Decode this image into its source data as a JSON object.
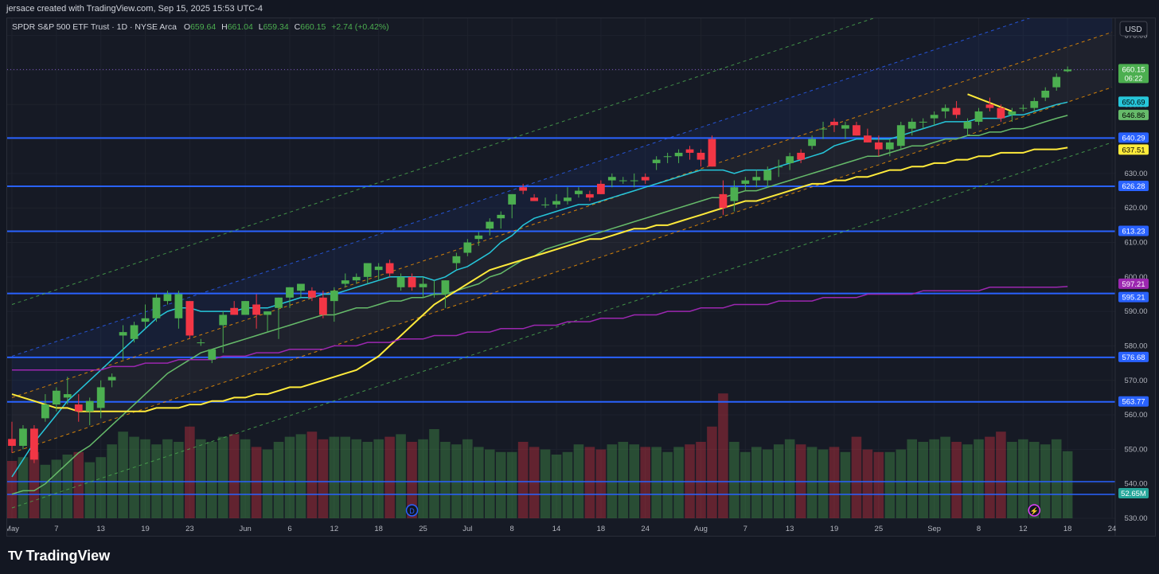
{
  "header": {
    "credit": "jersace created with TradingView.com, Sep 15, 2025 15:53 UTC-4"
  },
  "legend": {
    "symbol": "SPDR S&P 500 ETF Trust · 1D · NYSE Arca",
    "o_label": "O",
    "o": "659.64",
    "h_label": "H",
    "h": "661.04",
    "l_label": "L",
    "l": "659.34",
    "c_label": "C",
    "c": "660.15",
    "change": "+2.74 (+0.42%)"
  },
  "currency": "USD",
  "brand": {
    "name": "TradingView",
    "logo_text": "TV"
  },
  "colors": {
    "up": "#26a69a",
    "up_candle": "#4caf50",
    "down": "#f23645",
    "ema_fast": "#26c6da",
    "ema_mid": "#66bb6a",
    "sma_slow": "#ffeb3b",
    "sma_200": "#9c27b0",
    "hline": "#2962ff",
    "channel_orange": "#ff9800",
    "channel_blue": "#2962ff",
    "channel_green": "#4caf50"
  },
  "chart_data": {
    "type": "candlestick",
    "title": "SPDR S&P 500 ETF Trust · 1D · NYSE Arca",
    "ylim": [
      530,
      675
    ],
    "price_ticks": [
      670,
      660,
      650,
      640,
      630,
      620,
      610,
      600,
      590,
      580,
      570,
      560,
      550,
      540,
      530
    ],
    "time_ticks": [
      {
        "label": "May",
        "index": 0
      },
      {
        "label": "7",
        "index": 4
      },
      {
        "label": "13",
        "index": 8
      },
      {
        "label": "19",
        "index": 12
      },
      {
        "label": "23",
        "index": 16
      },
      {
        "label": "Jun",
        "index": 21
      },
      {
        "label": "6",
        "index": 25
      },
      {
        "label": "12",
        "index": 29
      },
      {
        "label": "18",
        "index": 33
      },
      {
        "label": "25",
        "index": 37
      },
      {
        "label": "Jul",
        "index": 41
      },
      {
        "label": "8",
        "index": 45
      },
      {
        "label": "14",
        "index": 49
      },
      {
        "label": "18",
        "index": 53
      },
      {
        "label": "24",
        "index": 57
      },
      {
        "label": "Aug",
        "index": 62
      },
      {
        "label": "7",
        "index": 66
      },
      {
        "label": "13",
        "index": 70
      },
      {
        "label": "19",
        "index": 74
      },
      {
        "label": "25",
        "index": 78
      },
      {
        "label": "Sep",
        "index": 83
      },
      {
        "label": "8",
        "index": 87
      },
      {
        "label": "12",
        "index": 91
      },
      {
        "label": "18",
        "index": 95
      },
      {
        "label": "24",
        "index": 99
      }
    ],
    "candles": [
      [
        553,
        558,
        549,
        551
      ],
      [
        551,
        557,
        550,
        556
      ],
      [
        556,
        557,
        546,
        547
      ],
      [
        559,
        566,
        558,
        563
      ],
      [
        563,
        568,
        561,
        567
      ],
      [
        565,
        571,
        563,
        566
      ],
      [
        563,
        566,
        558,
        561
      ],
      [
        561,
        565,
        557,
        564
      ],
      [
        562,
        570,
        559,
        568
      ],
      [
        570,
        572,
        568,
        571
      ],
      [
        583,
        586,
        576,
        584
      ],
      [
        582,
        587,
        581,
        586
      ],
      [
        587,
        592,
        585,
        588
      ],
      [
        588,
        595,
        587,
        594
      ],
      [
        593,
        596,
        592,
        595
      ],
      [
        588,
        596,
        585,
        595
      ],
      [
        593,
        593,
        582,
        583
      ],
      [
        581,
        582,
        580,
        581
      ],
      [
        576,
        579,
        575,
        579
      ],
      [
        586,
        590,
        578,
        589
      ],
      [
        591,
        593,
        589,
        589
      ],
      [
        589,
        593,
        589,
        593
      ],
      [
        592,
        595,
        585,
        589
      ],
      [
        589,
        590,
        584,
        590
      ],
      [
        591,
        594,
        582,
        594
      ],
      [
        594,
        597,
        591,
        597
      ],
      [
        596,
        598,
        594,
        598
      ],
      [
        596,
        597,
        593,
        594
      ],
      [
        594,
        596,
        588,
        589
      ],
      [
        593,
        597,
        587,
        596
      ],
      [
        598,
        601,
        597,
        599
      ],
      [
        599,
        601,
        598,
        600
      ],
      [
        600,
        604,
        598,
        604
      ],
      [
        602,
        604,
        599,
        603
      ],
      [
        604,
        605,
        600,
        601
      ],
      [
        597,
        601,
        596,
        600
      ],
      [
        600,
        601,
        596,
        597
      ],
      [
        597,
        600,
        594,
        598
      ],
      [
        595,
        599,
        594,
        595
      ],
      [
        595,
        599,
        591,
        599
      ],
      [
        604,
        607,
        602,
        606
      ],
      [
        607,
        611,
        606,
        610
      ],
      [
        611,
        613,
        609,
        612
      ],
      [
        614,
        617,
        612,
        616
      ],
      [
        617,
        619,
        614,
        618
      ],
      [
        621,
        624,
        617,
        624
      ],
      [
        626,
        627,
        624,
        625
      ],
      [
        623,
        624,
        622,
        622
      ],
      [
        621,
        623,
        620,
        621
      ],
      [
        621,
        624,
        620,
        622
      ],
      [
        622,
        626,
        621,
        623
      ],
      [
        624,
        626,
        623,
        625
      ],
      [
        624,
        625,
        622,
        623
      ],
      [
        627,
        628,
        624,
        624
      ],
      [
        628,
        630,
        626,
        629
      ],
      [
        628,
        629,
        627,
        628
      ],
      [
        628,
        630,
        626,
        628
      ],
      [
        629,
        630,
        627,
        628
      ],
      [
        633,
        635,
        631,
        634
      ],
      [
        635,
        636,
        633,
        635
      ],
      [
        635,
        637,
        633,
        636
      ],
      [
        637,
        638,
        634,
        636
      ],
      [
        636,
        637,
        632,
        634
      ],
      [
        640,
        641,
        632,
        632
      ],
      [
        624,
        628,
        618,
        620
      ],
      [
        622,
        628,
        619,
        626
      ],
      [
        627,
        629,
        625,
        628
      ],
      [
        628,
        631,
        626,
        629
      ],
      [
        628,
        632,
        626,
        631
      ],
      [
        632,
        634,
        629,
        632
      ],
      [
        633,
        636,
        631,
        635
      ],
      [
        636,
        637,
        633,
        634
      ],
      [
        638,
        641,
        637,
        640
      ],
      [
        643,
        645,
        640,
        643
      ],
      [
        645,
        646,
        642,
        644
      ],
      [
        643,
        645,
        640,
        644
      ],
      [
        644,
        645,
        641,
        641
      ],
      [
        641,
        643,
        639,
        639
      ],
      [
        639,
        641,
        635,
        637
      ],
      [
        637,
        640,
        635,
        639
      ],
      [
        638,
        645,
        637,
        644
      ],
      [
        643,
        646,
        641,
        645
      ],
      [
        645,
        646,
        643,
        645
      ],
      [
        646,
        648,
        644,
        647
      ],
      [
        648,
        650,
        646,
        649
      ],
      [
        649,
        651,
        646,
        647
      ],
      [
        643,
        646,
        641,
        645
      ],
      [
        645,
        649,
        644,
        648
      ],
      [
        650,
        652,
        648,
        649
      ],
      [
        649,
        650,
        645,
        646
      ],
      [
        647,
        649,
        645,
        648
      ],
      [
        649,
        650,
        648,
        649
      ],
      [
        649,
        652,
        648,
        651
      ],
      [
        652,
        655,
        651,
        654
      ],
      [
        655,
        659,
        654,
        658
      ],
      [
        659.64,
        661.04,
        659.34,
        660.15
      ]
    ],
    "candle_colors_note": "up when close >= open",
    "volume_millions": [
      45,
      48,
      52,
      42,
      46,
      50,
      52,
      44,
      48,
      58,
      68,
      64,
      62,
      58,
      62,
      60,
      72,
      62,
      60,
      64,
      66,
      62,
      56,
      54,
      60,
      64,
      66,
      68,
      62,
      64,
      64,
      62,
      60,
      62,
      64,
      66,
      60,
      62,
      70,
      60,
      58,
      62,
      56,
      54,
      52,
      52,
      60,
      56,
      54,
      50,
      52,
      58,
      56,
      54,
      58,
      60,
      58,
      56,
      56,
      52,
      56,
      58,
      60,
      72,
      98,
      60,
      52,
      56,
      54,
      58,
      62,
      58,
      56,
      54,
      56,
      52,
      64,
      54,
      52,
      52,
      54,
      62,
      60,
      62,
      64,
      60,
      58,
      62,
      64,
      68,
      60,
      62,
      60,
      58,
      62,
      52.65
    ],
    "volume_max": 100,
    "indicators": [
      {
        "name": "EMA",
        "value": 650.69,
        "color": "#26c6da",
        "values": [
          542,
          547,
          552,
          556,
          560,
          564,
          567,
          570,
          573,
          576,
          579,
          582,
          585,
          588,
          590,
          591,
          591,
          590,
          590,
          590,
          590,
          591,
          591,
          591,
          592,
          593,
          594,
          594,
          595,
          595,
          596,
          597,
          598,
          599,
          600,
          600,
          600,
          600,
          599,
          600,
          602,
          603,
          605,
          607,
          610,
          612,
          615,
          617,
          618,
          619,
          620,
          621,
          621,
          622,
          623,
          624,
          625,
          626,
          627,
          628,
          629,
          630,
          631,
          631,
          631,
          630,
          631,
          631,
          631,
          632,
          633,
          634,
          635,
          636,
          638,
          639,
          640,
          640,
          640,
          640,
          641,
          642,
          643,
          644,
          645,
          645,
          645,
          646,
          646,
          646,
          647,
          647,
          648,
          649,
          650,
          650.69
        ]
      },
      {
        "name": "EMA",
        "value": 646.86,
        "color": "#66bb6a",
        "values": [
          537,
          538,
          538,
          540,
          543,
          546,
          549,
          551,
          554,
          557,
          560,
          563,
          566,
          569,
          572,
          574,
          576,
          578,
          579,
          580,
          581,
          582,
          583,
          584,
          585,
          586,
          587,
          588,
          589,
          589,
          590,
          591,
          591,
          592,
          593,
          593,
          594,
          594,
          595,
          595,
          596,
          597,
          598,
          600,
          601,
          603,
          605,
          606,
          608,
          609,
          610,
          611,
          612,
          613,
          614,
          615,
          616,
          617,
          618,
          619,
          620,
          621,
          622,
          623,
          623,
          624,
          625,
          625,
          626,
          627,
          628,
          629,
          630,
          631,
          632,
          633,
          634,
          635,
          635,
          636,
          637,
          638,
          638,
          639,
          640,
          640,
          641,
          641,
          642,
          642,
          643,
          643,
          644,
          645,
          646,
          646.86
        ]
      },
      {
        "name": "SMA",
        "value": 637.51,
        "color": "#ffeb3b",
        "values": [
          566,
          565,
          564,
          563,
          562,
          562,
          561,
          561,
          561,
          561,
          561,
          561,
          561,
          562,
          562,
          562,
          563,
          563,
          564,
          564,
          565,
          565,
          566,
          566,
          567,
          568,
          568,
          569,
          570,
          571,
          572,
          573,
          575,
          577,
          580,
          583,
          586,
          589,
          592,
          594,
          596,
          598,
          600,
          602,
          603,
          604,
          605,
          606,
          607,
          608,
          609,
          610,
          611,
          611,
          612,
          613,
          614,
          614,
          615,
          615,
          616,
          617,
          618,
          619,
          620,
          621,
          622,
          622,
          623,
          624,
          625,
          626,
          627,
          627,
          628,
          628,
          629,
          629,
          630,
          631,
          631,
          632,
          632,
          633,
          633,
          634,
          634,
          635,
          635,
          636,
          636,
          636,
          637,
          637,
          637,
          637.51
        ]
      },
      {
        "name": "SMA 200",
        "value": 597.21,
        "color": "#9c27b0",
        "values": [
          573,
          573,
          573,
          573,
          573,
          573,
          573,
          573,
          573,
          574,
          574,
          574,
          575,
          575,
          575,
          576,
          576,
          576,
          576,
          577,
          577,
          577,
          578,
          578,
          578,
          579,
          579,
          579,
          579,
          580,
          580,
          580,
          581,
          581,
          581,
          582,
          582,
          582,
          583,
          583,
          583,
          584,
          584,
          584,
          585,
          585,
          585,
          586,
          586,
          586,
          587,
          587,
          587,
          588,
          588,
          588,
          589,
          589,
          589,
          590,
          590,
          590,
          591,
          591,
          591,
          592,
          592,
          592,
          592,
          593,
          593,
          593,
          593,
          594,
          594,
          594,
          594,
          595,
          595,
          595,
          595,
          595,
          596,
          596,
          596,
          596,
          596,
          596,
          597,
          597,
          597,
          597,
          597,
          597,
          597,
          597.21
        ]
      }
    ],
    "horizontal_levels": [
      640.29,
      626.28,
      613.23,
      595.21,
      576.68,
      563.77
    ],
    "channels": [
      {
        "color": "#ff9800",
        "style": "dashed",
        "start": [
          0,
          565
        ],
        "end": [
          99,
          671
        ]
      },
      {
        "color": "#ff9800",
        "style": "dashed",
        "start": [
          0,
          549
        ],
        "end": [
          99,
          655
        ]
      },
      {
        "color": "#2962ff",
        "style": "dashed",
        "start": [
          0,
          577
        ],
        "end": [
          99,
          683
        ]
      },
      {
        "color": "#4caf50",
        "style": "dashed",
        "start": [
          0,
          592
        ],
        "end": [
          99,
          698
        ]
      },
      {
        "color": "#4caf50",
        "style": "dashed",
        "start": [
          0,
          533
        ],
        "end": [
          99,
          639
        ]
      }
    ],
    "trendline": {
      "color": "#ffeb3b",
      "start": [
        86,
        653
      ],
      "end": [
        90,
        648
      ]
    },
    "price_labels": [
      {
        "text": "660.15",
        "sub": "06:22",
        "value": 660.15,
        "bg": "#4caf50",
        "fg": "#ffffff"
      },
      {
        "text": "650.69",
        "value": 650.69,
        "bg": "#26c6da",
        "fg": "#000000"
      },
      {
        "text": "646.86",
        "value": 646.86,
        "bg": "#66bb6a",
        "fg": "#000000"
      },
      {
        "text": "640.29",
        "value": 640.29,
        "bg": "#2962ff",
        "fg": "#ffffff"
      },
      {
        "text": "637.51",
        "value": 637.51,
        "bg": "#ffeb3b",
        "fg": "#000000"
      },
      {
        "text": "626.28",
        "value": 626.28,
        "bg": "#2962ff",
        "fg": "#ffffff"
      },
      {
        "text": "613.23",
        "value": 613.23,
        "bg": "#2962ff",
        "fg": "#ffffff"
      },
      {
        "text": "597.21",
        "value": 597.21,
        "bg": "#9c27b0",
        "fg": "#ffffff"
      },
      {
        "text": "595.21",
        "value": 595.21,
        "bg": "#2962ff",
        "fg": "#ffffff"
      },
      {
        "text": "576.68",
        "value": 576.68,
        "bg": "#2962ff",
        "fg": "#ffffff"
      },
      {
        "text": "563.77",
        "value": 563.77,
        "bg": "#2962ff",
        "fg": "#ffffff"
      },
      {
        "text": "52.65M",
        "value": 52.65,
        "bg": "#26a69a",
        "fg": "#ffffff",
        "kind": "volume"
      }
    ],
    "markers": [
      {
        "text": "D",
        "index": 36,
        "color": "#2962ff",
        "icon": "dividend-icon"
      },
      {
        "text": "⚡",
        "index": 92,
        "color": "#e040fb",
        "icon": "earnings-icon"
      }
    ]
  }
}
